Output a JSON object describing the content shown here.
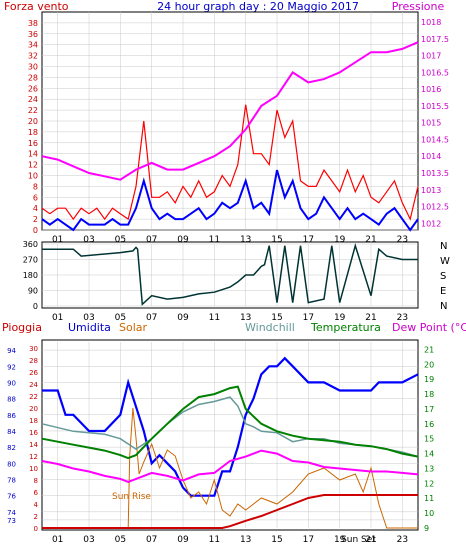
{
  "colors": {
    "frame": "#000000",
    "wind": "#ff0000",
    "gust": "#ff0000",
    "avg_wind": "#0000ff",
    "pressure": "#ff00ff",
    "direction": "#003333",
    "rain": "#ff0000",
    "rain_total": "#cc0000",
    "humidity": "#0000ff",
    "solar": "#cc6600",
    "windchill": "#669999",
    "temperature": "#008000",
    "dew_point": "#ff00ff",
    "grid": "#c8c8c8",
    "panel_bg": "#ffffff"
  },
  "chart_data": [
    {
      "type": "line",
      "title": "24 hour graph day : 20 Maggio 2017",
      "left_label": "Forza vento",
      "right_label": "Pressione",
      "x_ticks": [
        "01",
        "03",
        "05",
        "07",
        "09",
        "11",
        "13",
        "15",
        "17",
        "19",
        "21",
        "23"
      ],
      "x_range": [
        0,
        24
      ],
      "y_left": {
        "range": [
          0,
          40
        ],
        "ticks": [
          0,
          2,
          4,
          6,
          8,
          10,
          12,
          14,
          16,
          18,
          20,
          22,
          24,
          26,
          28,
          30,
          32,
          34,
          36,
          38
        ],
        "grid": true
      },
      "y_right": {
        "range": [
          1011.8,
          1018.3
        ],
        "ticks": [
          "1012",
          "1012.5",
          "1013",
          "1013.5",
          "1014",
          "1014.5",
          "1015",
          "1015.5",
          "1016",
          "1016.5",
          "1017",
          "1017.5",
          "1018"
        ]
      },
      "series": [
        {
          "name": "Forza vento",
          "kind": "gust",
          "x": [
            0,
            0.5,
            1,
            1.5,
            2,
            2.5,
            3,
            3.5,
            4,
            4.5,
            5,
            5.5,
            6,
            6.5,
            7,
            7.5,
            8,
            8.5,
            9,
            9.5,
            10,
            10.5,
            11,
            11.5,
            12,
            12.5,
            13,
            13.5,
            14,
            14.5,
            15,
            15.5,
            16,
            16.5,
            17,
            17.5,
            18,
            18.5,
            19,
            19.5,
            20,
            20.5,
            21,
            21.5,
            22,
            22.5,
            23,
            23.5,
            24
          ],
          "values": [
            4,
            3,
            4,
            4,
            2,
            4,
            3,
            4,
            2,
            4,
            3,
            2,
            8,
            20,
            6,
            6,
            7,
            5,
            8,
            6,
            9,
            6,
            7,
            10,
            8,
            12,
            23,
            14,
            14,
            12,
            22,
            17,
            20,
            9,
            8,
            8,
            11,
            9,
            7,
            11,
            7,
            10,
            6,
            5,
            7,
            9,
            5,
            2,
            8
          ]
        },
        {
          "name": "",
          "kind": "avg_wind",
          "x": [
            0,
            0.5,
            1,
            1.5,
            2,
            2.5,
            3,
            3.5,
            4,
            4.5,
            5,
            5.5,
            6,
            6.5,
            7,
            7.5,
            8,
            8.5,
            9,
            9.5,
            10,
            10.5,
            11,
            11.5,
            12,
            12.5,
            13,
            13.5,
            14,
            14.5,
            15,
            15.5,
            16,
            16.5,
            17,
            17.5,
            18,
            18.5,
            19,
            19.5,
            20,
            20.5,
            21,
            21.5,
            22,
            22.5,
            23,
            23.5,
            24
          ],
          "values": [
            2,
            1,
            2,
            1,
            0,
            2,
            1,
            1,
            1,
            2,
            1,
            1,
            4,
            9,
            4,
            2,
            3,
            2,
            2,
            3,
            4,
            2,
            3,
            5,
            4,
            5,
            9,
            4,
            5,
            3,
            11,
            6,
            9,
            4,
            2,
            3,
            6,
            4,
            2,
            4,
            2,
            3,
            2,
            1,
            3,
            4,
            2,
            0,
            2
          ]
        },
        {
          "name": "Pressione",
          "kind": "pressure",
          "x": [
            0,
            1,
            2,
            3,
            4,
            5,
            6,
            7,
            8,
            9,
            10,
            11,
            12,
            13,
            14,
            15,
            16,
            17,
            18,
            19,
            20,
            21,
            22,
            23,
            24
          ],
          "values": [
            1014.0,
            1013.9,
            1013.7,
            1013.5,
            1013.4,
            1013.3,
            1013.6,
            1013.8,
            1013.6,
            1013.6,
            1013.8,
            1014.0,
            1014.3,
            1014.8,
            1015.5,
            1015.8,
            1016.5,
            1016.2,
            1016.3,
            1016.5,
            1016.8,
            1017.1,
            1017.1,
            1017.2,
            1017.4
          ]
        }
      ]
    },
    {
      "type": "line",
      "x_ticks": [
        "01",
        "03",
        "05",
        "07",
        "09",
        "11",
        "13",
        "15",
        "17",
        "19",
        "21",
        "23"
      ],
      "y_left": {
        "range": [
          0,
          360
        ],
        "ticks": [
          "0",
          "90",
          "180",
          "270",
          "360"
        ]
      },
      "y_right_labels": [
        "N",
        "W",
        "S",
        "E",
        "N"
      ],
      "series": [
        {
          "name": "",
          "kind": "direction",
          "x": [
            0,
            2,
            2.5,
            5,
            5.8,
            6,
            6.1,
            6.4,
            7,
            8,
            9,
            10,
            11,
            12,
            12.5,
            13,
            13.5,
            14,
            14.2,
            14.5,
            15,
            15.5,
            16,
            16.5,
            17,
            18,
            18.5,
            19,
            20,
            21,
            21.5,
            22,
            23,
            24
          ],
          "values": [
            330,
            330,
            290,
            310,
            320,
            340,
            330,
            10,
            60,
            40,
            50,
            70,
            80,
            110,
            140,
            180,
            180,
            230,
            240,
            350,
            20,
            350,
            20,
            350,
            20,
            40,
            350,
            20,
            350,
            60,
            330,
            290,
            270,
            270
          ]
        }
      ]
    },
    {
      "type": "line",
      "labels": {
        "rain": "Pioggia",
        "humidity": "Umidita",
        "solar": "Solar",
        "windchill": "Windchill",
        "temperature": "Temperatura",
        "dew_point": "Dew Point (°C)"
      },
      "annotations": [
        "Sun Rise",
        "Sun Set"
      ],
      "x_ticks": [
        "01",
        "03",
        "05",
        "07",
        "09",
        "11",
        "13",
        "15",
        "17",
        "19",
        "21",
        "Sun Set",
        "23"
      ],
      "y_humidity": {
        "range": [
          72,
          95
        ],
        "ticks": [
          "73",
          "74",
          "76",
          "78",
          "80",
          "82",
          "84",
          "86",
          "88",
          "90",
          "92",
          "94"
        ]
      },
      "y_rain": {
        "range": [
          0,
          31
        ],
        "ticks": [
          "0",
          "2",
          "4",
          "6",
          "8",
          "10",
          "12",
          "14",
          "16",
          "18",
          "20",
          "22",
          "24",
          "26",
          "28",
          "30"
        ]
      },
      "y_temperature": {
        "range": [
          9,
          21.5
        ],
        "ticks": [
          "9",
          "10",
          "11",
          "12",
          "13",
          "14",
          "15",
          "16",
          "17",
          "18",
          "19",
          "20",
          "21"
        ]
      },
      "series": [
        {
          "name": "Umidita",
          "kind": "humidity",
          "x": [
            0,
            1,
            1.5,
            2,
            3,
            4,
            5,
            5.5,
            6,
            6.5,
            7,
            7.5,
            8,
            8.5,
            9,
            9.5,
            10,
            11,
            11.5,
            12,
            12.5,
            13,
            13.5,
            14,
            14.5,
            15,
            15.5,
            16,
            17,
            18,
            19,
            20,
            21,
            21.5,
            22,
            23,
            24
          ],
          "values": [
            89,
            89,
            86,
            86,
            84,
            84,
            86,
            90,
            87,
            84,
            80,
            81,
            80,
            79,
            77,
            76,
            76,
            76,
            79,
            79,
            82,
            86,
            88,
            91,
            92,
            92,
            93,
            92,
            90,
            90,
            89,
            89,
            89,
            90,
            90,
            90,
            91
          ]
        },
        {
          "name": "Solar",
          "kind": "solar",
          "x": [
            0,
            5.5,
            5.6,
            5.8,
            6,
            6.2,
            6.5,
            7,
            7.5,
            8,
            8.5,
            9,
            9.5,
            10,
            10.5,
            11,
            11.5,
            12,
            12.5,
            13,
            14,
            15,
            16,
            17,
            18,
            19,
            20,
            20.5,
            21,
            21.5,
            22,
            24
          ],
          "values": [
            0,
            0,
            12,
            20,
            15,
            9,
            11,
            14,
            10,
            13,
            12,
            8,
            5,
            6,
            4,
            8,
            3,
            2,
            4,
            3,
            5,
            4,
            6,
            9,
            10,
            8,
            9,
            6,
            10,
            4,
            0,
            0
          ]
        },
        {
          "name": "Windchill",
          "kind": "windchill",
          "x": [
            0,
            2,
            4,
            5,
            6,
            7,
            8,
            9,
            10,
            11,
            12,
            12.5,
            13,
            13.5,
            14,
            15,
            16,
            17,
            18,
            19,
            20,
            21,
            22,
            23,
            24
          ],
          "values": [
            16,
            15.5,
            15.3,
            15,
            14.3,
            15,
            16,
            16.8,
            17.3,
            17.5,
            17.8,
            17.2,
            16,
            15.8,
            15.5,
            15.4,
            14.8,
            15,
            15,
            14.7,
            14.6,
            14.5,
            14.3,
            14.1,
            13.8
          ]
        },
        {
          "name": "Temperatura",
          "kind": "temperature",
          "x": [
            0,
            1,
            2,
            3,
            4,
            5,
            5.5,
            6,
            7,
            8,
            9,
            10,
            11,
            12,
            12.5,
            13,
            14,
            15,
            16,
            17,
            18,
            19,
            20,
            21,
            22,
            23,
            24
          ],
          "values": [
            15,
            14.8,
            14.6,
            14.4,
            14.2,
            13.9,
            13.7,
            13.9,
            15,
            16,
            17,
            17.8,
            18,
            18.4,
            18.5,
            17,
            16,
            15.5,
            15.2,
            15,
            14.9,
            14.8,
            14.6,
            14.5,
            14.3,
            14.0,
            13.8
          ]
        },
        {
          "name": "Dew Point (°C)",
          "kind": "dew_point",
          "x": [
            0,
            1,
            2,
            3,
            4,
            5,
            5.5,
            6,
            7,
            8,
            9,
            10,
            11,
            12,
            13,
            14,
            15,
            16,
            17,
            18,
            19,
            20,
            21,
            22,
            23,
            24
          ],
          "values": [
            13.5,
            13.3,
            13.0,
            12.8,
            12.5,
            12.3,
            12.1,
            12.3,
            12.7,
            12.5,
            12.2,
            12.6,
            12.7,
            13.5,
            13.8,
            14.2,
            14.0,
            13.5,
            13.4,
            13.1,
            13.0,
            12.9,
            12.8,
            12.8,
            12.7,
            12.6
          ]
        },
        {
          "name": "Pioggia",
          "kind": "rain_total",
          "x": [
            0,
            11.5,
            12,
            13,
            14,
            15,
            16,
            17,
            18,
            19,
            20,
            21,
            22,
            23,
            24
          ],
          "values": [
            0,
            0,
            0.3,
            1.2,
            2,
            3,
            4,
            5,
            5.5,
            5.5,
            5.5,
            5.5,
            5.5,
            5.5,
            5.5
          ]
        }
      ]
    }
  ]
}
